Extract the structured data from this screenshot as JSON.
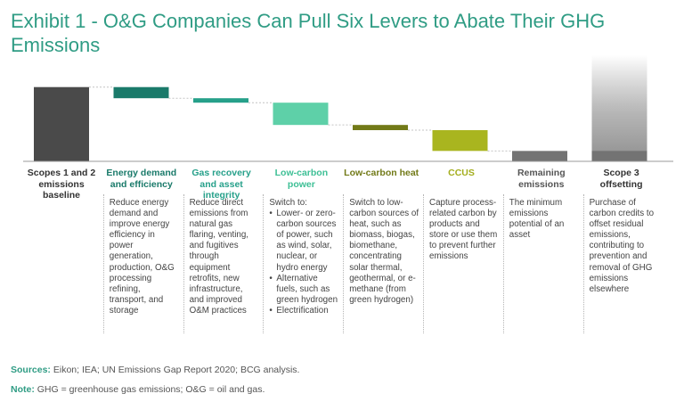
{
  "title": "Exhibit 1 - O&G Companies Can Pull Six Levers to Abate Their GHG Emissions",
  "colors": {
    "title": "#2f9c84",
    "baseline": "#4a4a4a",
    "energy_efficiency": "#1a7a6a",
    "gas_recovery": "#26a08a",
    "low_carbon_power": "#5ed0a8",
    "low_carbon_heat": "#727a18",
    "ccus": "#a9b51f",
    "remaining": "#737373",
    "offsetting": "#a8a8a8"
  },
  "chart_data": {
    "type": "waterfall",
    "title": "Exhibit 1 - O&G Companies Can Pull Six Levers to Abate Their GHG Emissions",
    "xlabel": "",
    "ylabel": "",
    "ylim": [
      0,
      100
    ],
    "y_axis_labeled": false,
    "grid": false,
    "categories": [
      "Scopes 1 and 2 emissions baseline",
      "Energy demand and efficiency",
      "Gas recovery and asset integrity",
      "Low-carbon power",
      "Low-carbon heat",
      "CCUS",
      "Remaining emissions",
      "Scope 3 offsetting"
    ],
    "bars": [
      {
        "label": "Scopes 1 and 2 emissions baseline",
        "kind": "total",
        "start": 0,
        "end": 100,
        "color": "#4a4a4a"
      },
      {
        "label": "Energy demand and efficiency",
        "kind": "decrease",
        "start": 100,
        "end": 85,
        "color": "#1a7a6a"
      },
      {
        "label": "Gas recovery and asset integrity",
        "kind": "decrease",
        "start": 85,
        "end": 79,
        "color": "#26a08a"
      },
      {
        "label": "Low-carbon power",
        "kind": "decrease",
        "start": 79,
        "end": 49,
        "color": "#5ed0a8"
      },
      {
        "label": "Low-carbon heat",
        "kind": "decrease",
        "start": 49,
        "end": 42,
        "color": "#727a18"
      },
      {
        "label": "CCUS",
        "kind": "decrease",
        "start": 42,
        "end": 14,
        "color": "#a9b51f"
      },
      {
        "label": "Remaining emissions",
        "kind": "total",
        "start": 0,
        "end": 14,
        "color": "#737373"
      },
      {
        "label": "Scope 3 offsetting",
        "kind": "offset",
        "start": 0,
        "end": 143,
        "color": "#a8a8a8",
        "fade": true
      }
    ]
  },
  "columns": [
    {
      "header": "Scopes 1 and 2 emissions baseline",
      "color": "#333333",
      "intro": "",
      "items": []
    },
    {
      "header": "Energy demand and efficiency",
      "color": "#1a7a6a",
      "intro": "Reduce energy demand and improve energy efficiency in power generation, production, O&G processing refining, transport, and storage",
      "items": []
    },
    {
      "header": "Gas recovery and asset integrity",
      "color": "#26a08a",
      "intro": "Reduce direct emissions from natural gas flaring, venting, and fugitives through equipment retrofits, new infrastructure, and improved O&M practices",
      "items": []
    },
    {
      "header": "Low-carbon power",
      "color": "#3dbf95",
      "intro": "Switch to:",
      "items": [
        "Lower- or zero-carbon sources of power, such as wind, solar, nuclear, or hydro energy",
        "Alternative fuels, such as green hydrogen",
        "Electrification"
      ]
    },
    {
      "header": "Low-carbon heat",
      "color": "#727a18",
      "intro": "Switch to low-carbon sources of heat, such as biomass, biogas, biomethane, concentrating solar thermal, geothermal, or e-methane (from green hydrogen)",
      "items": []
    },
    {
      "header": "CCUS",
      "color": "#a3ad1c",
      "intro": "Capture process-related carbon by products and store or use them to prevent further emissions",
      "items": []
    },
    {
      "header": "Remaining emissions",
      "color": "#555555",
      "intro": "The minimum emissions potential of an asset",
      "items": []
    },
    {
      "header": "Scope 3 offsetting",
      "color": "#333333",
      "intro": "Purchase of carbon credits to offset residual emissions, contributing to prevention and removal of GHG emissions elsewhere",
      "items": []
    }
  ],
  "footer": {
    "sources_label": "Sources:",
    "sources_text": "Eikon; IEA; UN Emissions Gap Report 2020; BCG analysis.",
    "note_label": "Note:",
    "note_text": "GHG = greenhouse gas emissions; O&G = oil and gas."
  }
}
